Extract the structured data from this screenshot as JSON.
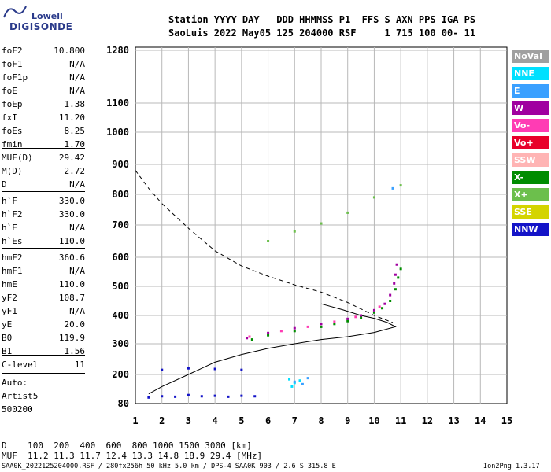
{
  "logo": {
    "top": "Lowell",
    "bottom": "DIGISONDE"
  },
  "header": {
    "line1": "Station YYYY DAY   DDD HHMMSS P1  FFS S AXN PPS IGA PS",
    "line2": "SaoLuis 2022 May05 125 204000 RSF     1 715 100 00- 11"
  },
  "params_group1": [
    {
      "k": "foF2",
      "v": "10.800"
    },
    {
      "k": "foF1",
      "v": "N/A"
    },
    {
      "k": "foF1p",
      "v": "N/A"
    },
    {
      "k": "foE",
      "v": "N/A"
    },
    {
      "k": "foEp",
      "v": "1.38"
    },
    {
      "k": "fxI",
      "v": "11.20"
    },
    {
      "k": "foEs",
      "v": "8.25"
    },
    {
      "k": "fmin",
      "v": "1.70"
    }
  ],
  "params_group2": [
    {
      "k": "MUF(D)",
      "v": "29.42"
    },
    {
      "k": "M(D)",
      "v": "2.72"
    },
    {
      "k": "D",
      "v": "N/A"
    }
  ],
  "params_group3": [
    {
      "k": "h`F",
      "v": "330.0"
    },
    {
      "k": "h`F2",
      "v": "330.0"
    },
    {
      "k": "h`E",
      "v": "N/A"
    },
    {
      "k": "h`Es",
      "v": "110.0"
    }
  ],
  "params_group4": [
    {
      "k": "hmF2",
      "v": "360.6"
    },
    {
      "k": "hmF1",
      "v": "N/A"
    },
    {
      "k": "hmE",
      "v": "110.0"
    },
    {
      "k": "yF2",
      "v": "108.7"
    },
    {
      "k": "yF1",
      "v": "N/A"
    },
    {
      "k": "yE",
      "v": "20.0"
    },
    {
      "k": "B0",
      "v": "119.9"
    },
    {
      "k": "B1",
      "v": "1.56"
    }
  ],
  "params_group5": [
    {
      "k": "C-level",
      "v": "11"
    }
  ],
  "autoscale": {
    "l1": "Auto:",
    "l2": "Artist5",
    "l3": "500200"
  },
  "legend": [
    {
      "label": "NoVal",
      "color": "#a0a0a0"
    },
    {
      "label": "NNE",
      "color": "#00e0ff"
    },
    {
      "label": "E",
      "color": "#3aa0ff"
    },
    {
      "label": "W",
      "color": "#a000a0"
    },
    {
      "label": "Vo-",
      "color": "#ff3cb4"
    },
    {
      "label": "Vo+",
      "color": "#e8002a"
    },
    {
      "label": "SSW",
      "color": "#ffb4b4"
    },
    {
      "label": "X-",
      "color": "#008c00"
    },
    {
      "label": "X+",
      "color": "#6cbf4c"
    },
    {
      "label": "SSE",
      "color": "#d4d400"
    },
    {
      "label": "NNW",
      "color": "#1414c8"
    }
  ],
  "footer": {
    "row1": "D    100  200  400  600  800 1000 1500 3000 [km]",
    "row2": "MUF  11.2 11.3 11.7 12.4 13.3 14.8 18.9 29.4 [MHz]",
    "row3": "SAA0K_2022125204000.RSF / 280fx256h 50 kHz 5.0 km / DPS-4 SAA0K 903 / 2.6 S 315.8 E",
    "version": "Ion2Png 1.3.17"
  },
  "chart_data": {
    "type": "scatter",
    "xlim": [
      1,
      15
    ],
    "ylim": [
      80,
      1300
    ],
    "xticks": [
      1,
      2,
      3,
      4,
      5,
      6,
      7,
      8,
      9,
      10,
      11,
      12,
      13,
      14,
      15
    ],
    "yticks": [
      80,
      200,
      300,
      400,
      500,
      600,
      700,
      800,
      900,
      1000,
      1100,
      1280
    ],
    "grid": true,
    "series": [
      {
        "name": "X-",
        "color": "#008c00",
        "points": [
          [
            5.4,
            315
          ],
          [
            6,
            330
          ],
          [
            7,
            345
          ],
          [
            8,
            360
          ],
          [
            8.5,
            370
          ],
          [
            9,
            380
          ],
          [
            9.5,
            393
          ],
          [
            10,
            410
          ],
          [
            10.3,
            425
          ],
          [
            10.6,
            450
          ],
          [
            10.8,
            490
          ],
          [
            10.9,
            530
          ],
          [
            11,
            560
          ]
        ]
      },
      {
        "name": "W",
        "color": "#a000a0",
        "points": [
          [
            5.2,
            320
          ],
          [
            6,
            338
          ],
          [
            7,
            355
          ],
          [
            8,
            370
          ],
          [
            9,
            388
          ],
          [
            9.5,
            400
          ],
          [
            10,
            418
          ],
          [
            10.4,
            440
          ],
          [
            10.6,
            470
          ],
          [
            10.75,
            510
          ],
          [
            10.8,
            540
          ],
          [
            10.85,
            575
          ]
        ]
      },
      {
        "name": "Vo-",
        "color": "#ff3cb4",
        "points": [
          [
            5.3,
            325
          ],
          [
            6.5,
            345
          ],
          [
            7.5,
            360
          ],
          [
            8.5,
            378
          ],
          [
            9.3,
            395
          ],
          [
            10.2,
            430
          ]
        ]
      },
      {
        "name": "X+",
        "color": "#6cbf4c",
        "points": [
          [
            6,
            650
          ],
          [
            7,
            680
          ],
          [
            8,
            705
          ],
          [
            9,
            740
          ],
          [
            10,
            790
          ],
          [
            11,
            830
          ]
        ]
      },
      {
        "name": "NNE",
        "color": "#00e0ff",
        "points": [
          [
            6.8,
            180
          ],
          [
            7,
            165
          ],
          [
            7.2,
            175
          ],
          [
            6.9,
            150
          ]
        ]
      },
      {
        "name": "E",
        "color": "#3aa0ff",
        "points": [
          [
            7,
            170
          ],
          [
            7.3,
            160
          ],
          [
            7.5,
            185
          ],
          [
            10.7,
            820
          ]
        ]
      },
      {
        "name": "NNW",
        "color": "#1414c8",
        "points": [
          [
            1.5,
            105
          ],
          [
            2,
            110
          ],
          [
            2.5,
            108
          ],
          [
            3,
            115
          ],
          [
            3.5,
            110
          ],
          [
            4,
            112
          ],
          [
            4.5,
            108
          ],
          [
            5,
            112
          ],
          [
            5.5,
            110
          ],
          [
            2,
            215
          ],
          [
            3,
            220
          ],
          [
            4,
            218
          ],
          [
            5,
            215
          ]
        ]
      }
    ],
    "profile_solid": [
      [
        1.5,
        120
      ],
      [
        2,
        150
      ],
      [
        3,
        200
      ],
      [
        4,
        240
      ],
      [
        5,
        265
      ],
      [
        6,
        285
      ],
      [
        7,
        300
      ],
      [
        8,
        315
      ],
      [
        9,
        325
      ],
      [
        10,
        340
      ],
      [
        10.8,
        360
      ],
      [
        10.5,
        375
      ],
      [
        10,
        390
      ],
      [
        9.5,
        400
      ],
      [
        8.8,
        420
      ],
      [
        8,
        440
      ]
    ],
    "profile_dashed": [
      [
        1,
        880
      ],
      [
        1.5,
        820
      ],
      [
        2,
        770
      ],
      [
        3,
        690
      ],
      [
        4,
        620
      ],
      [
        5,
        570
      ],
      [
        6,
        535
      ],
      [
        7,
        505
      ],
      [
        8,
        480
      ],
      [
        9,
        445
      ],
      [
        10,
        400
      ],
      [
        10.7,
        375
      ]
    ]
  }
}
